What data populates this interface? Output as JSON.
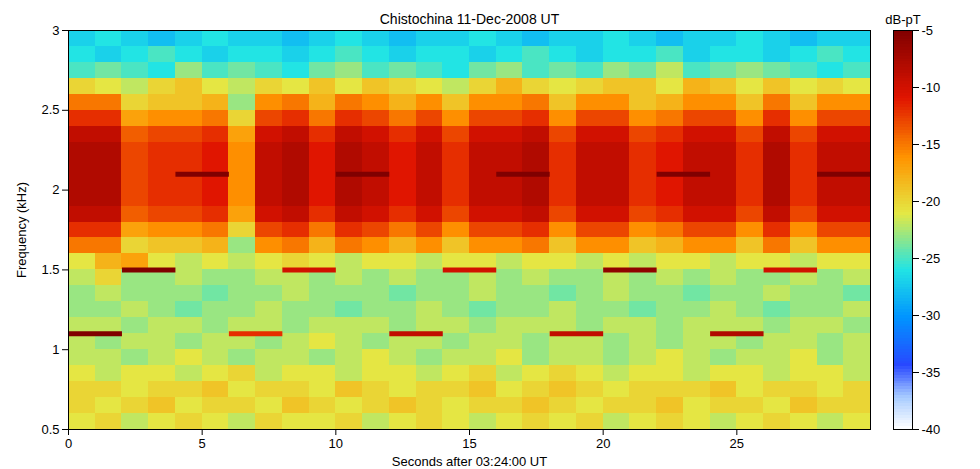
{
  "chart_data": {
    "type": "heatmap",
    "title": "Chistochina 11-Dec-2008 UT",
    "x_label": "Seconds after 03:24:00 UT",
    "y_label": "Frequency (kHz)",
    "xlim": [
      0,
      30
    ],
    "xticks": [
      0,
      5,
      10,
      15,
      20,
      25
    ],
    "ylim": [
      0.5,
      3
    ],
    "yticks": [
      0.5,
      1,
      1.5,
      2,
      2.5,
      3
    ],
    "time_bins": [
      0,
      1,
      2,
      3,
      4,
      5,
      6,
      7,
      8,
      9,
      10,
      11,
      12,
      13,
      14,
      15,
      16,
      17,
      18,
      19,
      20,
      21,
      22,
      23,
      24,
      25,
      26,
      27,
      28,
      29,
      30
    ],
    "frequency_bins": [
      0.5,
      0.6,
      0.7,
      0.8,
      0.9,
      1.0,
      1.1,
      1.2,
      1.3,
      1.4,
      1.5,
      1.6,
      1.7,
      1.8,
      1.9,
      2.0,
      2.1,
      2.2,
      2.3,
      2.4,
      2.5,
      2.6,
      2.7,
      2.8,
      2.9,
      3.0
    ],
    "levels": [
      [
        -21,
        -20,
        -22,
        -21,
        -20,
        -21,
        -22,
        -20,
        -21,
        -21,
        -20,
        -22,
        -21,
        -20,
        -21,
        -22,
        -21,
        -20,
        -21,
        -20,
        -22,
        -21,
        -20,
        -21,
        -22,
        -21,
        -20,
        -21,
        -22,
        -21
      ],
      [
        -20,
        -21,
        -20,
        -19,
        -21,
        -20,
        -20,
        -21,
        -19,
        -20,
        -21,
        -20,
        -19,
        -20,
        -21,
        -20,
        -20,
        -19,
        -20,
        -21,
        -20,
        -20,
        -19,
        -21,
        -20,
        -20,
        -21,
        -19,
        -20,
        -20
      ],
      [
        -20,
        -20,
        -21,
        -20,
        -20,
        -19,
        -21,
        -20,
        -20,
        -21,
        -19,
        -20,
        -21,
        -20,
        -20,
        -19,
        -21,
        -20,
        -19,
        -20,
        -21,
        -20,
        -20,
        -20,
        -19,
        -21,
        -20,
        -20,
        -21,
        -20
      ],
      [
        -21,
        -22,
        -21,
        -21,
        -22,
        -21,
        -20,
        -22,
        -21,
        -21,
        -22,
        -21,
        -21,
        -22,
        -21,
        -20,
        -22,
        -21,
        -20,
        -21,
        -22,
        -21,
        -21,
        -22,
        -21,
        -21,
        -22,
        -21,
        -21,
        -22
      ],
      [
        -22,
        -22,
        -23,
        -22,
        -21,
        -22,
        -23,
        -22,
        -22,
        -23,
        -22,
        -21,
        -22,
        -23,
        -22,
        -22,
        -21,
        -23,
        -22,
        -22,
        -23,
        -22,
        -21,
        -22,
        -23,
        -22,
        -22,
        -21,
        -23,
        -22
      ],
      [
        -22,
        -23,
        -22,
        -22,
        -23,
        -22,
        -22,
        -23,
        -22,
        -21,
        -22,
        -23,
        -22,
        -22,
        -23,
        -22,
        -22,
        -23,
        -22,
        -22,
        -23,
        -22,
        -23,
        -22,
        -22,
        -23,
        -22,
        -22,
        -23,
        -22
      ],
      [
        -22,
        -22,
        -23,
        -22,
        -22,
        -23,
        -22,
        -22,
        -23,
        -22,
        -22,
        -22,
        -23,
        -22,
        -22,
        -23,
        -22,
        -22,
        -22,
        -23,
        -22,
        -22,
        -23,
        -22,
        -22,
        -22,
        -23,
        -22,
        -22,
        -23
      ],
      [
        -23,
        -23,
        -22,
        -23,
        -24,
        -23,
        -23,
        -22,
        -23,
        -23,
        -24,
        -23,
        -23,
        -22,
        -23,
        -24,
        -23,
        -23,
        -22,
        -23,
        -23,
        -24,
        -23,
        -23,
        -22,
        -23,
        -24,
        -23,
        -23,
        -22
      ],
      [
        -23,
        -22,
        -23,
        -23,
        -23,
        -24,
        -23,
        -23,
        -22,
        -23,
        -23,
        -23,
        -24,
        -23,
        -23,
        -22,
        -23,
        -23,
        -24,
        -23,
        -22,
        -23,
        -23,
        -24,
        -23,
        -23,
        -22,
        -23,
        -23,
        -24
      ],
      [
        -22,
        -20,
        -23,
        -23,
        -22,
        -23,
        -23,
        -22,
        -22,
        -23,
        -22,
        -23,
        -22,
        -23,
        -23,
        -22,
        -23,
        -22,
        -23,
        -23,
        -22,
        -23,
        -22,
        -23,
        -22,
        -23,
        -23,
        -22,
        -23,
        -22
      ],
      [
        -21,
        -18,
        -17,
        -21,
        -22,
        -21,
        -22,
        -21,
        -20,
        -21,
        -22,
        -21,
        -21,
        -22,
        -21,
        -21,
        -22,
        -21,
        -21,
        -22,
        -21,
        -22,
        -21,
        -21,
        -22,
        -21,
        -21,
        -22,
        -21,
        -21
      ],
      [
        -15,
        -15,
        -20,
        -19,
        -19,
        -18,
        -23,
        -16,
        -15,
        -18,
        -15,
        -16,
        -18,
        -16,
        -19,
        -16,
        -16,
        -15,
        -19,
        -16,
        -16,
        -19,
        -18,
        -16,
        -16,
        -19,
        -15,
        -19,
        -16,
        -16
      ],
      [
        -12,
        -12,
        -17,
        -16,
        -16,
        -15,
        -20,
        -13,
        -12,
        -15,
        -12,
        -13,
        -15,
        -13,
        -16,
        -13,
        -13,
        -12,
        -16,
        -13,
        -13,
        -16,
        -15,
        -13,
        -13,
        -16,
        -12,
        -16,
        -13,
        -13
      ],
      [
        -9,
        -9,
        -14,
        -13,
        -13,
        -12,
        -17,
        -10,
        -9,
        -12,
        -9,
        -10,
        -12,
        -10,
        -13,
        -10,
        -10,
        -9,
        -13,
        -10,
        -10,
        -13,
        -12,
        -10,
        -10,
        -13,
        -9,
        -13,
        -10,
        -10
      ],
      [
        -8,
        -8,
        -13,
        -12,
        -12,
        -11,
        -16,
        -9,
        -8,
        -11,
        -8,
        -9,
        -11,
        -9,
        -12,
        -9,
        -9,
        -8,
        -12,
        -9,
        -9,
        -12,
        -11,
        -9,
        -9,
        -12,
        -8,
        -12,
        -9,
        -9
      ],
      [
        -8,
        -8,
        -13,
        -12,
        -12,
        -11,
        -16,
        -9,
        -8,
        -11,
        -8,
        -9,
        -11,
        -9,
        -12,
        -9,
        -9,
        -8,
        -12,
        -9,
        -9,
        -12,
        -11,
        -9,
        -9,
        -12,
        -8,
        -12,
        -9,
        -9
      ],
      [
        -8,
        -8,
        -13,
        -12,
        -12,
        -11,
        -16,
        -9,
        -8,
        -11,
        -8,
        -9,
        -11,
        -9,
        -12,
        -9,
        -9,
        -8,
        -12,
        -9,
        -9,
        -12,
        -11,
        -9,
        -9,
        -12,
        -8,
        -12,
        -9,
        -9
      ],
      [
        -8,
        -8,
        -13,
        -12,
        -12,
        -11,
        -16,
        -9,
        -8,
        -11,
        -8,
        -9,
        -11,
        -9,
        -12,
        -9,
        -9,
        -8,
        -12,
        -9,
        -9,
        -12,
        -11,
        -9,
        -9,
        -12,
        -8,
        -12,
        -9,
        -9
      ],
      [
        -9,
        -9,
        -14,
        -13,
        -13,
        -12,
        -17,
        -10,
        -9,
        -12,
        -9,
        -10,
        -12,
        -10,
        -13,
        -10,
        -10,
        -9,
        -13,
        -10,
        -10,
        -13,
        -12,
        -10,
        -10,
        -13,
        -9,
        -13,
        -10,
        -10
      ],
      [
        -12,
        -12,
        -17,
        -16,
        -16,
        -15,
        -20,
        -13,
        -12,
        -15,
        -12,
        -13,
        -15,
        -13,
        -16,
        -13,
        -13,
        -12,
        -16,
        -13,
        -13,
        -16,
        -15,
        -13,
        -13,
        -16,
        -12,
        -16,
        -13,
        -13
      ],
      [
        -15,
        -15,
        -20,
        -19,
        -19,
        -18,
        -23,
        -16,
        -15,
        -18,
        -15,
        -16,
        -18,
        -16,
        -19,
        -16,
        -16,
        -15,
        -19,
        -16,
        -16,
        -19,
        -18,
        -16,
        -16,
        -19,
        -15,
        -19,
        -16,
        -16
      ],
      [
        -20,
        -21,
        -22,
        -20,
        -19,
        -21,
        -22,
        -20,
        -21,
        -19,
        -21,
        -19,
        -20,
        -21,
        -22,
        -20,
        -18,
        -20,
        -21,
        -20,
        -19,
        -19,
        -21,
        -18,
        -19,
        -21,
        -19,
        -21,
        -20,
        -21
      ],
      [
        -25,
        -24,
        -25,
        -26,
        -23,
        -25,
        -24,
        -25,
        -26,
        -24,
        -23,
        -25,
        -24,
        -25,
        -26,
        -24,
        -23,
        -25,
        -24,
        -25,
        -23,
        -24,
        -22,
        -25,
        -24,
        -23,
        -24,
        -25,
        -26,
        -25
      ],
      [
        -26,
        -27,
        -26,
        -25,
        -26,
        -27,
        -26,
        -26,
        -27,
        -26,
        -25,
        -26,
        -27,
        -26,
        -26,
        -27,
        -26,
        -25,
        -26,
        -27,
        -26,
        -26,
        -25,
        -27,
        -26,
        -26,
        -27,
        -26,
        -25,
        -26
      ],
      [
        -27,
        -26,
        -27,
        -28,
        -27,
        -26,
        -27,
        -27,
        -28,
        -27,
        -26,
        -27,
        -28,
        -27,
        -27,
        -26,
        -27,
        -28,
        -27,
        -27,
        -26,
        -27,
        -28,
        -27,
        -27,
        -26,
        -27,
        -28,
        -27,
        -27
      ]
    ],
    "tones": [
      {
        "start": 0,
        "end": 2,
        "frequency": 1.1,
        "level": -5
      },
      {
        "start": 2,
        "end": 4,
        "frequency": 1.5,
        "level": -5
      },
      {
        "start": 4,
        "end": 6,
        "frequency": 2.1,
        "level": -5
      },
      {
        "start": 6,
        "end": 8,
        "frequency": 1.1,
        "level": -12
      },
      {
        "start": 8,
        "end": 10,
        "frequency": 1.5,
        "level": -10
      },
      {
        "start": 10,
        "end": 12,
        "frequency": 2.1,
        "level": -5
      },
      {
        "start": 12,
        "end": 14,
        "frequency": 1.1,
        "level": -9
      },
      {
        "start": 14,
        "end": 16,
        "frequency": 1.5,
        "level": -10
      },
      {
        "start": 16,
        "end": 18,
        "frequency": 2.1,
        "level": -5
      },
      {
        "start": 18,
        "end": 20,
        "frequency": 1.1,
        "level": -9
      },
      {
        "start": 20,
        "end": 22,
        "frequency": 1.5,
        "level": -6
      },
      {
        "start": 22,
        "end": 24,
        "frequency": 2.1,
        "level": -5
      },
      {
        "start": 24,
        "end": 26,
        "frequency": 1.1,
        "level": -8
      },
      {
        "start": 26,
        "end": 28,
        "frequency": 1.5,
        "level": -10
      },
      {
        "start": 28,
        "end": 30,
        "frequency": 2.1,
        "level": -5
      }
    ],
    "colorbar": {
      "label": "dB-pT",
      "range": [
        -40,
        -5
      ],
      "ticks": [
        -5,
        -10,
        -15,
        -20,
        -25,
        -30,
        -35,
        -40
      ]
    }
  }
}
